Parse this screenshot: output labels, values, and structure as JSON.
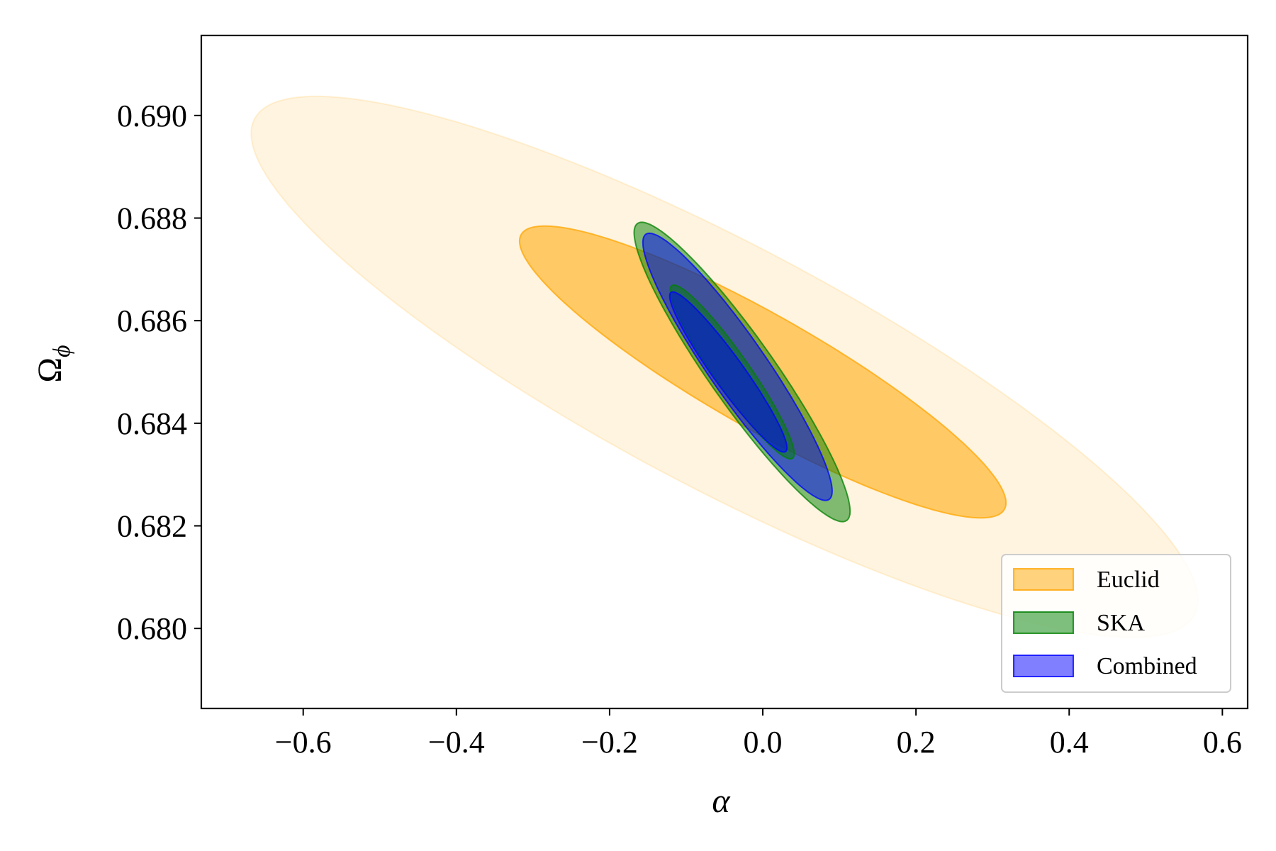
{
  "chart_data": {
    "type": "contour",
    "title": "",
    "xlabel": "α",
    "ylabel": "Ω",
    "ylabel_subscript": "ϕ",
    "xlim": [
      -0.733,
      0.633
    ],
    "ylim": [
      0.67844,
      0.69156
    ],
    "xticks": [
      -0.6,
      -0.4,
      -0.2,
      0.0,
      0.2,
      0.4,
      0.6
    ],
    "xtick_labels": [
      "−0.6",
      "−0.4",
      "−0.2",
      "0.0",
      "0.2",
      "0.4",
      "0.6"
    ],
    "yticks": [
      0.68,
      0.682,
      0.684,
      0.686,
      0.688,
      0.69
    ],
    "ytick_labels": [
      "0.680",
      "0.682",
      "0.684",
      "0.686",
      "0.688",
      "0.690"
    ],
    "grid": false,
    "legend_position": "lower right",
    "series": [
      {
        "name": "Euclid",
        "color": "#FFA500",
        "contours": [
          {
            "level": "2-sigma",
            "center": [
              -0.05,
              0.6851
            ],
            "semi_major_x": 0.617,
            "semi_major_y": -0.00469,
            "semi_minor_x": -0.0345,
            "semi_minor_y": -0.00241,
            "opacity": 0.12
          },
          {
            "level": "1-sigma",
            "center": [
              0.0,
              0.685
            ],
            "semi_major_x": 0.317,
            "semi_major_y": -0.00262,
            "semi_minor_x": -0.0186,
            "semi_minor_y": -0.00111,
            "opacity": 0.55
          }
        ]
      },
      {
        "name": "SKA",
        "color": "#008000",
        "contours": [
          {
            "level": "2-sigma",
            "center": [
              -0.027,
              0.685
            ],
            "semi_major_x": 0.137,
            "semi_major_y": -0.00289,
            "semi_minor_x": -0.0332,
            "semi_minor_y": -0.000405,
            "opacity": 0.5
          },
          {
            "level": "1-sigma",
            "center": [
              -0.04,
              0.685
            ],
            "semi_major_x": 0.079,
            "semi_major_y": -0.00168,
            "semi_minor_x": -0.0178,
            "semi_minor_y": -0.000215,
            "opacity": 0.5
          }
        ]
      },
      {
        "name": "Combined",
        "color": "#0000FF",
        "contours": [
          {
            "level": "2-sigma",
            "center": [
              -0.033,
              0.6851
            ],
            "semi_major_x": 0.12,
            "semi_major_y": -0.00258,
            "semi_minor_x": -0.0294,
            "semi_minor_y": -0.000351,
            "opacity": 0.5
          },
          {
            "level": "1-sigma",
            "center": [
              -0.045,
              0.685
            ],
            "semi_major_x": 0.075,
            "semi_major_y": -0.00155,
            "semi_minor_x": -0.0155,
            "semi_minor_y": -0.000189,
            "opacity": 0.5
          }
        ]
      }
    ]
  }
}
